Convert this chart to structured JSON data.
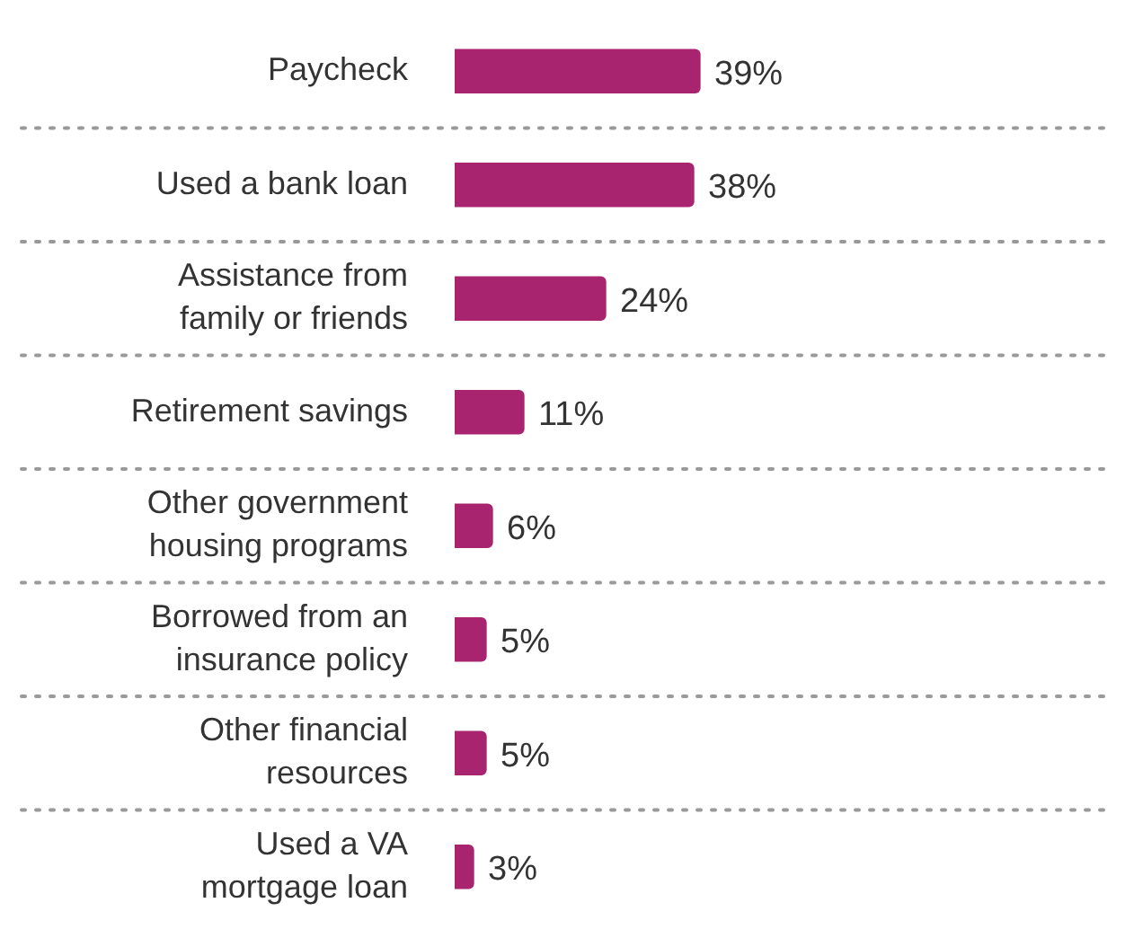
{
  "chart_data": {
    "type": "bar",
    "orientation": "horizontal",
    "categories": [
      "Paycheck",
      "Used a bank loan",
      "Assistance from family or friends",
      "Retirement savings",
      "Other government housing programs",
      "Borrowed from an insurance policy",
      "Other financial resources",
      "Used a VA mortgage loan"
    ],
    "values": [
      39,
      38,
      24,
      11,
      6,
      5,
      5,
      3
    ],
    "value_labels": [
      "39%",
      "38%",
      "24%",
      "11%",
      "6%",
      "5%",
      "5%",
      "3%"
    ],
    "color": "#a8246e",
    "grid": "y",
    "legend": false
  }
}
